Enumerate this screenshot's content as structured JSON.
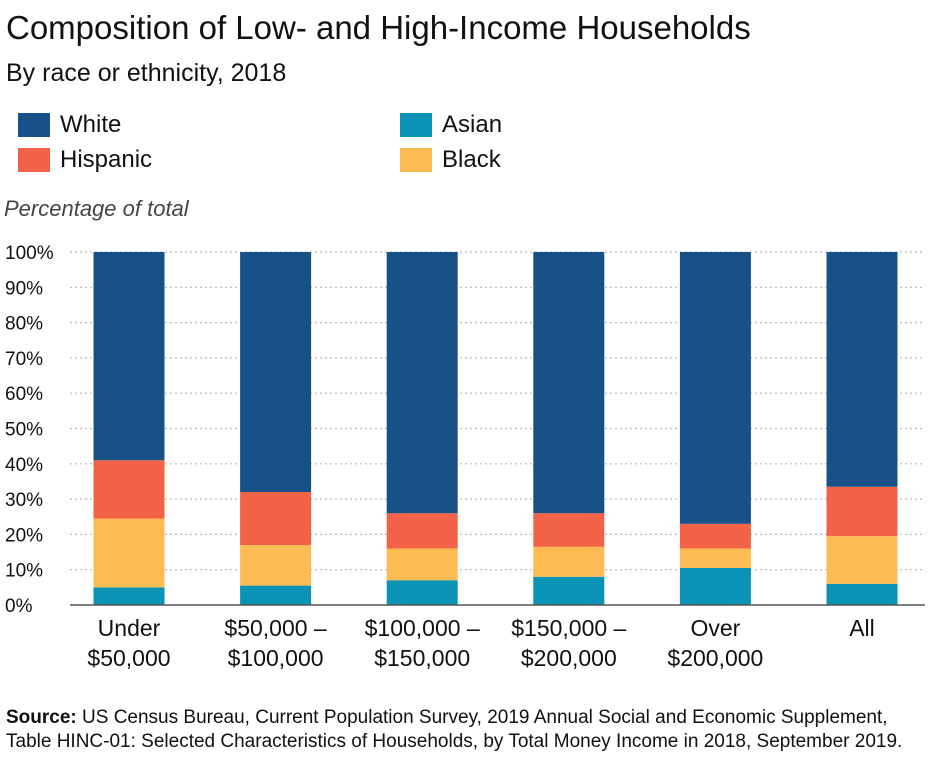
{
  "chart_data": {
    "type": "bar",
    "stacked": true,
    "title": "Composition of Low- and High-Income Households",
    "subtitle": "By race or ethnicity, 2018",
    "ylabel": "Percentage of total",
    "xlabel": "",
    "ylim": [
      0,
      100
    ],
    "yticks": [
      "0%",
      "10%",
      "20%",
      "30%",
      "40%",
      "50%",
      "60%",
      "70%",
      "80%",
      "90%",
      "100%"
    ],
    "grid": "horizontal dotted",
    "legend_placement": "top-left",
    "categories": [
      [
        "Under",
        "$50,000"
      ],
      [
        "$50,000 –",
        "$100,000"
      ],
      [
        "$100,000 –",
        "$150,000"
      ],
      [
        "$150,000 –",
        "$200,000"
      ],
      [
        "Over",
        "$200,000"
      ],
      [
        "All"
      ]
    ],
    "series": [
      {
        "name": "Asian",
        "color": "#0a93b4",
        "values": [
          5,
          5.5,
          7,
          8,
          10.5,
          6
        ]
      },
      {
        "name": "Black",
        "color": "#fdbb53",
        "values": [
          19.5,
          11.5,
          9,
          8.5,
          5.5,
          13.5
        ]
      },
      {
        "name": "Hispanic",
        "color": "#f26246",
        "values": [
          16.5,
          15,
          10,
          9.5,
          7,
          14
        ]
      },
      {
        "name": "White",
        "color": "#185187",
        "values": [
          59,
          68,
          74,
          74,
          77,
          66.5
        ]
      }
    ],
    "legend": [
      {
        "name": "White",
        "color": "#185187"
      },
      {
        "name": "Asian",
        "color": "#0a93b4"
      },
      {
        "name": "Hispanic",
        "color": "#f26246"
      },
      {
        "name": "Black",
        "color": "#fdbb53"
      }
    ],
    "source_label": "Source:",
    "source_text": " US Census Bureau, Current Population Survey, 2019 Annual Social and Economic Supplement, Table HINC-01: Selected Characteristics of Households, by Total Money Income in 2018, September 2019."
  }
}
